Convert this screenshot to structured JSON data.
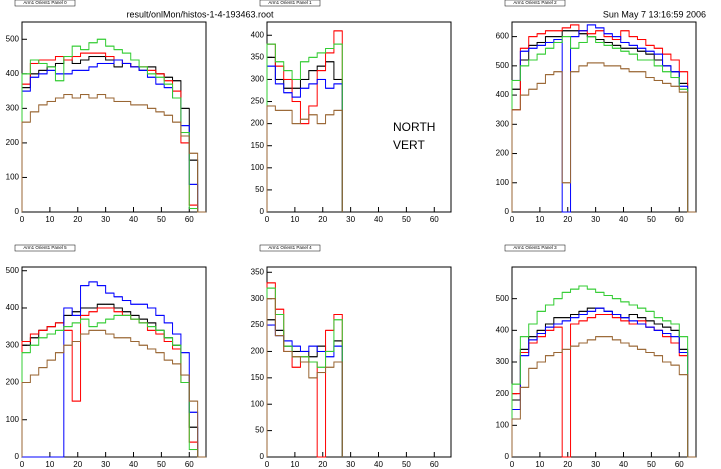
{
  "file_label": "result/onlMon/histos-1-4-193463.root",
  "date": "Sun May  7 13:16:59 2006",
  "chart_data": [
    {
      "type": "histogram",
      "title": "Arm1 Orient1 Panel 0",
      "bins": [
        0,
        3,
        6,
        9,
        12,
        15,
        18,
        21,
        24,
        27,
        30,
        33,
        36,
        39,
        42,
        45,
        48,
        51,
        54,
        57,
        60,
        63,
        66
      ],
      "xlim": [
        0,
        66
      ],
      "xticks": [
        0,
        10,
        20,
        30,
        40,
        50,
        60
      ],
      "ylim": [
        0,
        550
      ],
      "yticks": [
        0,
        100,
        200,
        300,
        400,
        500
      ],
      "series": [
        {
          "color": "#000000",
          "values": [
            360,
            400,
            410,
            420,
            430,
            440,
            430,
            440,
            450,
            450,
            440,
            420,
            430,
            420,
            410,
            420,
            400,
            390,
            380,
            300,
            150,
            0
          ]
        },
        {
          "color": "#ff0000",
          "values": [
            370,
            430,
            440,
            440,
            450,
            440,
            450,
            460,
            460,
            460,
            450,
            440,
            430,
            420,
            420,
            410,
            400,
            380,
            350,
            200,
            20,
            0
          ]
        },
        {
          "color": "#0000ff",
          "values": [
            350,
            390,
            400,
            410,
            400,
            400,
            410,
            410,
            420,
            430,
            430,
            440,
            430,
            420,
            410,
            390,
            370,
            360,
            330,
            250,
            80,
            0
          ]
        },
        {
          "color": "#33cc33",
          "values": [
            400,
            440,
            430,
            420,
            380,
            450,
            480,
            470,
            490,
            500,
            480,
            470,
            460,
            440,
            420,
            400,
            390,
            370,
            330,
            230,
            10,
            0
          ]
        },
        {
          "color": "#996633",
          "values": [
            260,
            290,
            310,
            320,
            330,
            340,
            330,
            340,
            330,
            340,
            330,
            320,
            320,
            310,
            310,
            300,
            290,
            280,
            260,
            220,
            170,
            0
          ]
        }
      ]
    },
    {
      "type": "histogram",
      "title": "Arm1 Orient1 Panel 1",
      "bins": [
        0,
        3,
        6,
        9,
        12,
        15,
        18,
        21,
        24,
        27
      ],
      "xlim": [
        0,
        66
      ],
      "xticks": [
        0,
        10,
        20,
        30,
        40,
        50,
        60
      ],
      "ylim": [
        0,
        430
      ],
      "yticks": [
        0,
        50,
        100,
        150,
        200,
        250,
        300,
        350,
        400
      ],
      "annotations": [
        "NORTH",
        "VERT"
      ],
      "series": [
        {
          "color": "#000000",
          "values": [
            350,
            300,
            280,
            280,
            300,
            320,
            330,
            340,
            300
          ]
        },
        {
          "color": "#ff0000",
          "values": [
            380,
            330,
            300,
            250,
            200,
            240,
            320,
            360,
            410
          ]
        },
        {
          "color": "#0000ff",
          "values": [
            330,
            290,
            270,
            260,
            280,
            290,
            300,
            280,
            290
          ]
        },
        {
          "color": "#33cc33",
          "values": [
            380,
            340,
            320,
            300,
            340,
            350,
            360,
            370,
            380
          ]
        },
        {
          "color": "#996633",
          "values": [
            240,
            230,
            230,
            200,
            210,
            220,
            200,
            220,
            230
          ]
        }
      ]
    },
    {
      "type": "histogram",
      "title": "Arm1 Orient1 Panel 2",
      "bins": [
        0,
        3,
        6,
        9,
        12,
        15,
        18,
        21,
        24,
        27,
        30,
        33,
        36,
        39,
        42,
        45,
        48,
        51,
        54,
        57,
        60,
        63,
        66
      ],
      "xlim": [
        0,
        66
      ],
      "xticks": [
        0,
        10,
        20,
        30,
        40,
        50,
        60
      ],
      "ylim": [
        0,
        650
      ],
      "yticks": [
        0,
        100,
        200,
        300,
        400,
        500,
        600
      ],
      "series": [
        {
          "color": "#000000",
          "values": [
            420,
            520,
            570,
            580,
            600,
            600,
            620,
            620,
            610,
            600,
            590,
            580,
            570,
            560,
            560,
            550,
            540,
            520,
            500,
            480,
            440,
            0
          ]
        },
        {
          "color": "#ff0000",
          "values": [
            350,
            560,
            600,
            610,
            620,
            620,
            630,
            640,
            620,
            610,
            620,
            600,
            590,
            620,
            600,
            590,
            570,
            560,
            540,
            520,
            480,
            0
          ]
        },
        {
          "color": "#0000ff",
          "values": [
            450,
            550,
            560,
            570,
            580,
            590,
            0,
            600,
            620,
            640,
            630,
            610,
            600,
            580,
            570,
            560,
            550,
            540,
            500,
            480,
            430,
            0
          ]
        },
        {
          "color": "#33cc33",
          "values": [
            450,
            500,
            520,
            540,
            560,
            580,
            600,
            560,
            580,
            600,
            580,
            570,
            560,
            550,
            540,
            520,
            520,
            500,
            480,
            460,
            420,
            0
          ]
        },
        {
          "color": "#996633",
          "values": [
            350,
            400,
            420,
            440,
            470,
            480,
            100,
            480,
            500,
            510,
            510,
            500,
            500,
            490,
            480,
            480,
            460,
            450,
            440,
            430,
            410,
            0
          ]
        }
      ]
    },
    {
      "type": "histogram",
      "title": "Arm1 Orient1 Panel 5",
      "bins": [
        0,
        3,
        6,
        9,
        12,
        15,
        18,
        21,
        24,
        27,
        30,
        33,
        36,
        39,
        42,
        45,
        48,
        51,
        54,
        57,
        60,
        63,
        66
      ],
      "xlim": [
        0,
        66
      ],
      "xticks": [
        0,
        10,
        20,
        30,
        40,
        50,
        60
      ],
      "ylim": [
        0,
        510
      ],
      "yticks": [
        0,
        100,
        200,
        300,
        400,
        500
      ],
      "series": [
        {
          "color": "#000000",
          "values": [
            300,
            320,
            340,
            350,
            360,
            380,
            390,
            400,
            400,
            410,
            410,
            400,
            390,
            380,
            370,
            360,
            340,
            320,
            300,
            220,
            80,
            0
          ]
        },
        {
          "color": "#ff0000",
          "values": [
            310,
            330,
            340,
            350,
            360,
            340,
            150,
            380,
            390,
            400,
            400,
            390,
            380,
            370,
            360,
            340,
            330,
            310,
            290,
            200,
            40,
            0
          ]
        },
        {
          "color": "#0000ff",
          "values": [
            0,
            0,
            0,
            0,
            0,
            400,
            380,
            460,
            470,
            460,
            440,
            430,
            420,
            410,
            410,
            400,
            380,
            360,
            330,
            280,
            120,
            0
          ]
        },
        {
          "color": "#33cc33",
          "values": [
            280,
            300,
            320,
            330,
            340,
            350,
            360,
            370,
            350,
            360,
            370,
            380,
            380,
            370,
            360,
            350,
            340,
            320,
            300,
            200,
            20,
            0
          ]
        },
        {
          "color": "#996633",
          "values": [
            200,
            220,
            240,
            260,
            280,
            300,
            310,
            330,
            340,
            340,
            330,
            320,
            320,
            310,
            300,
            290,
            280,
            260,
            250,
            220,
            150,
            0
          ]
        }
      ]
    },
    {
      "type": "histogram",
      "title": "Arm1 Orient1 Panel 4",
      "bins": [
        0,
        3,
        6,
        9,
        12,
        15,
        18,
        21,
        24,
        27
      ],
      "xlim": [
        0,
        66
      ],
      "xticks": [
        0,
        10,
        20,
        30,
        40,
        50,
        60
      ],
      "ylim": [
        0,
        360
      ],
      "yticks": [
        0,
        50,
        100,
        150,
        200,
        250,
        300,
        350
      ],
      "series": [
        {
          "color": "#000000",
          "values": [
            260,
            240,
            210,
            200,
            200,
            190,
            210,
            200,
            220
          ]
        },
        {
          "color": "#ff0000",
          "values": [
            330,
            280,
            200,
            170,
            190,
            180,
            0,
            240,
            270
          ]
        },
        {
          "color": "#0000ff",
          "values": [
            250,
            230,
            220,
            210,
            200,
            210,
            200,
            190,
            210
          ]
        },
        {
          "color": "#33cc33",
          "values": [
            320,
            270,
            210,
            190,
            190,
            180,
            170,
            200,
            260
          ]
        },
        {
          "color": "#996633",
          "values": [
            300,
            230,
            200,
            190,
            180,
            150,
            160,
            170,
            180
          ]
        }
      ]
    },
    {
      "type": "histogram",
      "title": "Arm1 Orient1 Panel 3",
      "bins": [
        0,
        3,
        6,
        9,
        12,
        15,
        18,
        21,
        24,
        27,
        30,
        33,
        36,
        39,
        42,
        45,
        48,
        51,
        54,
        57,
        60,
        63,
        66
      ],
      "xlim": [
        0,
        66
      ],
      "xticks": [
        0,
        10,
        20,
        30,
        40,
        50,
        60
      ],
      "ylim": [
        0,
        600
      ],
      "yticks": [
        0,
        100,
        200,
        300,
        400,
        500
      ],
      "series": [
        {
          "color": "#000000",
          "values": [
            180,
            340,
            380,
            400,
            420,
            440,
            440,
            450,
            460,
            470,
            470,
            460,
            450,
            440,
            450,
            440,
            430,
            420,
            410,
            400,
            340,
            0
          ]
        },
        {
          "color": "#ff0000",
          "values": [
            200,
            330,
            360,
            380,
            400,
            410,
            0,
            420,
            430,
            440,
            450,
            450,
            440,
            430,
            420,
            430,
            410,
            400,
            380,
            360,
            320,
            0
          ]
        },
        {
          "color": "#0000ff",
          "values": [
            150,
            320,
            370,
            390,
            410,
            420,
            430,
            440,
            450,
            460,
            470,
            460,
            450,
            440,
            430,
            420,
            410,
            400,
            390,
            380,
            330,
            0
          ]
        },
        {
          "color": "#33cc33",
          "values": [
            230,
            380,
            420,
            460,
            480,
            500,
            520,
            530,
            540,
            530,
            520,
            510,
            500,
            490,
            480,
            470,
            460,
            440,
            430,
            420,
            380,
            0
          ]
        },
        {
          "color": "#996633",
          "values": [
            120,
            220,
            280,
            300,
            320,
            330,
            340,
            350,
            360,
            370,
            380,
            380,
            370,
            360,
            350,
            340,
            330,
            320,
            300,
            290,
            260,
            0
          ]
        }
      ]
    }
  ]
}
